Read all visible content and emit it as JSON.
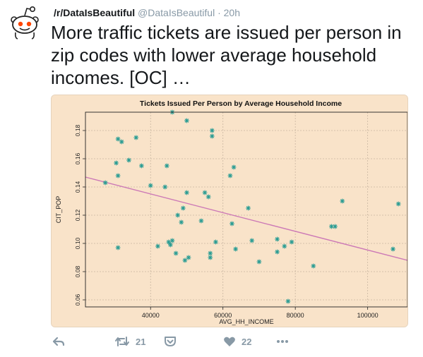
{
  "tweet": {
    "author_name": "/r/DataIsBeautiful",
    "handle": "@DataIsBeautiful",
    "separator": "·",
    "time": "20h",
    "text": "More traffic tickets are issued per person in zip codes with lower average household incomes. [OC] …",
    "actions": {
      "reply": {
        "icon": "reply-icon"
      },
      "retweet": {
        "icon": "retweet-icon",
        "count": "21"
      },
      "save": {
        "icon": "pocket-icon"
      },
      "like": {
        "icon": "heart-icon",
        "count": "22"
      },
      "more": {
        "icon": "more-icon"
      }
    }
  },
  "colors": {
    "chart_background": "#f9e3c9",
    "point": "#2a9c93",
    "trend_line": "#cc79b6",
    "muted": "#8899a6"
  },
  "chart_data": {
    "type": "scatter",
    "title": "Tickets Issued Per Person by Average Household Income",
    "xlabel": "AVG_HH_INCOME",
    "ylabel": "CIT_POP",
    "xlim": [
      22000,
      111000
    ],
    "ylim": [
      0.055,
      0.193
    ],
    "xticks": [
      40000,
      60000,
      80000,
      100000
    ],
    "yticks": [
      0.06,
      0.08,
      0.1,
      0.12,
      0.14,
      0.16,
      0.18
    ],
    "grid": true,
    "marker": "*",
    "points": [
      [
        27500,
        0.143
      ],
      [
        30500,
        0.157
      ],
      [
        31000,
        0.174
      ],
      [
        31000,
        0.148
      ],
      [
        31000,
        0.097
      ],
      [
        32000,
        0.172
      ],
      [
        34000,
        0.159
      ],
      [
        36000,
        0.175
      ],
      [
        37500,
        0.155
      ],
      [
        40000,
        0.141
      ],
      [
        42000,
        0.098
      ],
      [
        44000,
        0.14
      ],
      [
        44500,
        0.155
      ],
      [
        45000,
        0.101
      ],
      [
        45500,
        0.099
      ],
      [
        46000,
        0.102
      ],
      [
        46000,
        0.193
      ],
      [
        47000,
        0.093
      ],
      [
        47500,
        0.12
      ],
      [
        48500,
        0.115
      ],
      [
        49000,
        0.125
      ],
      [
        49500,
        0.088
      ],
      [
        50000,
        0.187
      ],
      [
        50000,
        0.136
      ],
      [
        50500,
        0.09
      ],
      [
        54000,
        0.116
      ],
      [
        55000,
        0.136
      ],
      [
        56000,
        0.133
      ],
      [
        56500,
        0.09
      ],
      [
        56500,
        0.093
      ],
      [
        57000,
        0.18
      ],
      [
        57000,
        0.176
      ],
      [
        58000,
        0.101
      ],
      [
        62000,
        0.148
      ],
      [
        62500,
        0.114
      ],
      [
        63000,
        0.154
      ],
      [
        63500,
        0.096
      ],
      [
        67000,
        0.125
      ],
      [
        68000,
        0.102
      ],
      [
        70000,
        0.087
      ],
      [
        75000,
        0.103
      ],
      [
        75000,
        0.094
      ],
      [
        77000,
        0.098
      ],
      [
        78000,
        0.059
      ],
      [
        79000,
        0.101
      ],
      [
        85000,
        0.084
      ],
      [
        90000,
        0.112
      ],
      [
        91000,
        0.112
      ],
      [
        93000,
        0.13
      ],
      [
        107000,
        0.096
      ],
      [
        108500,
        0.128
      ]
    ],
    "trend_line": {
      "x": [
        22000,
        111000
      ],
      "y": [
        0.147,
        0.088
      ]
    }
  }
}
